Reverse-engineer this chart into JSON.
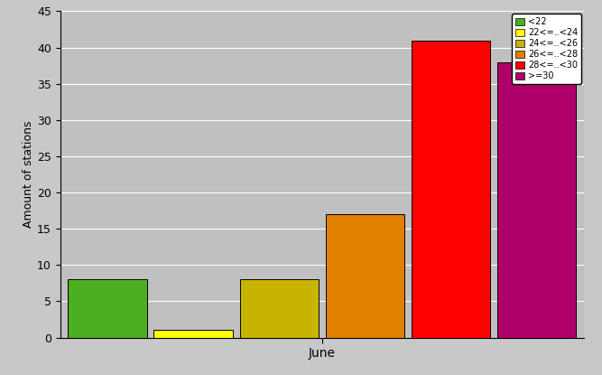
{
  "categories": [
    "<22",
    "22<=..<24",
    "24<=..<26",
    "26<=..<28",
    "28<=..<30",
    ">=30"
  ],
  "values": [
    8,
    1,
    8,
    17,
    41,
    38
  ],
  "colors": [
    "#4caf20",
    "#ffff00",
    "#c8b400",
    "#e08000",
    "#ff0000",
    "#b0006a"
  ],
  "xlabel": "June",
  "ylabel": "Amount of stations",
  "ylim": [
    0,
    45
  ],
  "yticks": [
    0,
    5,
    10,
    15,
    20,
    25,
    30,
    35,
    40,
    45
  ],
  "background_color": "#c8c8c8",
  "plot_bg_color": "#c0c0c0",
  "legend_labels": [
    "<22",
    "22<=..<24",
    "24<=..<26",
    "26<=..<28",
    "28<=..<30",
    ">=30"
  ],
  "grid_color": "#ffffff",
  "legend_colors": [
    "#4caf20",
    "#ffff00",
    "#c8b400",
    "#e08000",
    "#ff0000",
    "#b0006a"
  ]
}
